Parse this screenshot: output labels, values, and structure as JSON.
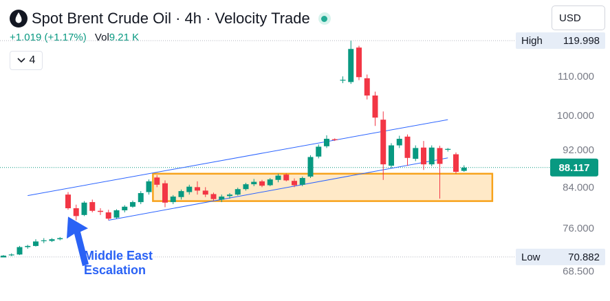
{
  "header": {
    "title": "Spot Brent Crude Oil · 4h · Velocity Trade",
    "change": "+1.019 (+1.17%)",
    "vol_label": "Vol",
    "vol_value": "9.21 K",
    "currency": "USD",
    "indicator_count": "4"
  },
  "colors": {
    "up": "#089981",
    "down": "#f23645",
    "channel": "#2962ff",
    "zone_fill": "#ffe9c7",
    "zone_border": "#f7a21b",
    "annotation": "#2a62f5"
  },
  "chart_data": {
    "type": "candlestick",
    "symbol": "Spot Brent Crude Oil",
    "timeframe": "4h",
    "y_axis": {
      "scale": "log",
      "range": [
        66.5,
        126
      ],
      "ticks": [
        "110.000",
        "100.000",
        "92.000",
        "84.000",
        "76.000",
        "68.500"
      ]
    },
    "high": {
      "label": "High",
      "value": "119.998"
    },
    "low": {
      "label": "Low",
      "value": "70.882"
    },
    "last_price": "88.117",
    "candles": [
      [
        70.8,
        71.2,
        70.8,
        71.1
      ],
      [
        71.2,
        71.5,
        71.0,
        71.3
      ],
      [
        71.3,
        72.8,
        71.2,
        72.6
      ],
      [
        72.6,
        73.0,
        72.3,
        72.8
      ],
      [
        72.8,
        74.0,
        72.7,
        73.6
      ],
      [
        73.7,
        74.2,
        73.3,
        73.8
      ],
      [
        73.7,
        74.2,
        73.5,
        74.0
      ],
      [
        74.0,
        74.4,
        73.8,
        74.2
      ],
      [
        82.5,
        83.0,
        79.5,
        79.8
      ],
      [
        79.8,
        80.5,
        77.5,
        78.3
      ],
      [
        78.5,
        81.2,
        78.3,
        80.9
      ],
      [
        81.0,
        81.5,
        79.0,
        79.3
      ],
      [
        79.3,
        79.8,
        78.5,
        79.1
      ],
      [
        79.0,
        79.5,
        77.5,
        77.8
      ],
      [
        78.0,
        79.6,
        77.8,
        79.4
      ],
      [
        79.4,
        80.4,
        79.0,
        80.1
      ],
      [
        80.1,
        81.3,
        79.9,
        81.0
      ],
      [
        81.0,
        83.2,
        80.6,
        82.8
      ],
      [
        83.0,
        85.6,
        82.5,
        85.2
      ],
      [
        86.0,
        86.5,
        84.0,
        84.5
      ],
      [
        84.8,
        85.4,
        80.0,
        80.9
      ],
      [
        81.0,
        82.4,
        80.6,
        82.1
      ],
      [
        82.0,
        83.5,
        81.5,
        83.2
      ],
      [
        83.0,
        84.5,
        82.5,
        84.1
      ],
      [
        84.0,
        85.2,
        82.5,
        83.3
      ],
      [
        83.3,
        84.0,
        82.0,
        82.5
      ],
      [
        82.6,
        82.9,
        81.3,
        81.6
      ],
      [
        81.5,
        82.5,
        81.0,
        82.1
      ],
      [
        82.2,
        82.8,
        81.7,
        82.5
      ],
      [
        82.5,
        83.9,
        82.3,
        83.6
      ],
      [
        83.6,
        84.9,
        83.3,
        84.6
      ],
      [
        84.6,
        85.7,
        84.2,
        85.1
      ],
      [
        85.2,
        85.5,
        84.0,
        84.3
      ],
      [
        84.4,
        85.9,
        84.2,
        85.6
      ],
      [
        85.5,
        86.8,
        85.0,
        86.4
      ],
      [
        86.6,
        86.9,
        85.2,
        85.4
      ],
      [
        85.3,
        85.8,
        84.0,
        84.4
      ],
      [
        84.5,
        86.2,
        84.2,
        85.9
      ],
      [
        86.2,
        90.8,
        85.9,
        90.4
      ],
      [
        90.5,
        93.2,
        90.1,
        92.7
      ],
      [
        92.8,
        95.3,
        92.4,
        94.5
      ],
      [
        94.4,
        94.6,
        94.0,
        94.2
      ],
      [
        109.0,
        110.0,
        108.2,
        109.1
      ],
      [
        108.5,
        120.0,
        108.0,
        117.6
      ],
      [
        118.0,
        118.5,
        109.0,
        109.8
      ],
      [
        109.5,
        110.5,
        104.0,
        105.0
      ],
      [
        105.0,
        106.0,
        97.5,
        99.5
      ],
      [
        99.0,
        101.0,
        85.5,
        88.8
      ],
      [
        88.5,
        93.5,
        88.0,
        93.0
      ],
      [
        93.0,
        95.2,
        92.4,
        94.5
      ],
      [
        95.0,
        95.5,
        88.5,
        90.2
      ],
      [
        90.0,
        93.0,
        89.5,
        92.4
      ],
      [
        92.5,
        94.0,
        87.6,
        88.8
      ],
      [
        88.8,
        93.0,
        88.4,
        92.5
      ],
      [
        92.4,
        92.9,
        81.7,
        88.9
      ],
      [
        92.0,
        92.4,
        91.6,
        92.2
      ],
      [
        91.0,
        91.4,
        86.8,
        87.2
      ],
      [
        87.4,
        88.6,
        87.2,
        88.1
      ]
    ],
    "channel_lines": [
      {
        "name": "upper",
        "from": [
          3,
          82.3
        ],
        "to": [
          55,
          99.0
        ]
      },
      {
        "name": "lower",
        "from": [
          13,
          77.5
        ],
        "to": [
          55,
          90.2
        ]
      }
    ],
    "zone": {
      "from_index": 18.5,
      "to_index": 60.5,
      "price_top": 86.8,
      "price_bottom": 81.2
    },
    "reference_lines": {
      "current_price": 88.117,
      "high": 119.998,
      "low": 70.882
    },
    "annotation": {
      "text": [
        "Middle East",
        "Escalation"
      ],
      "points_to_index": 8
    }
  }
}
